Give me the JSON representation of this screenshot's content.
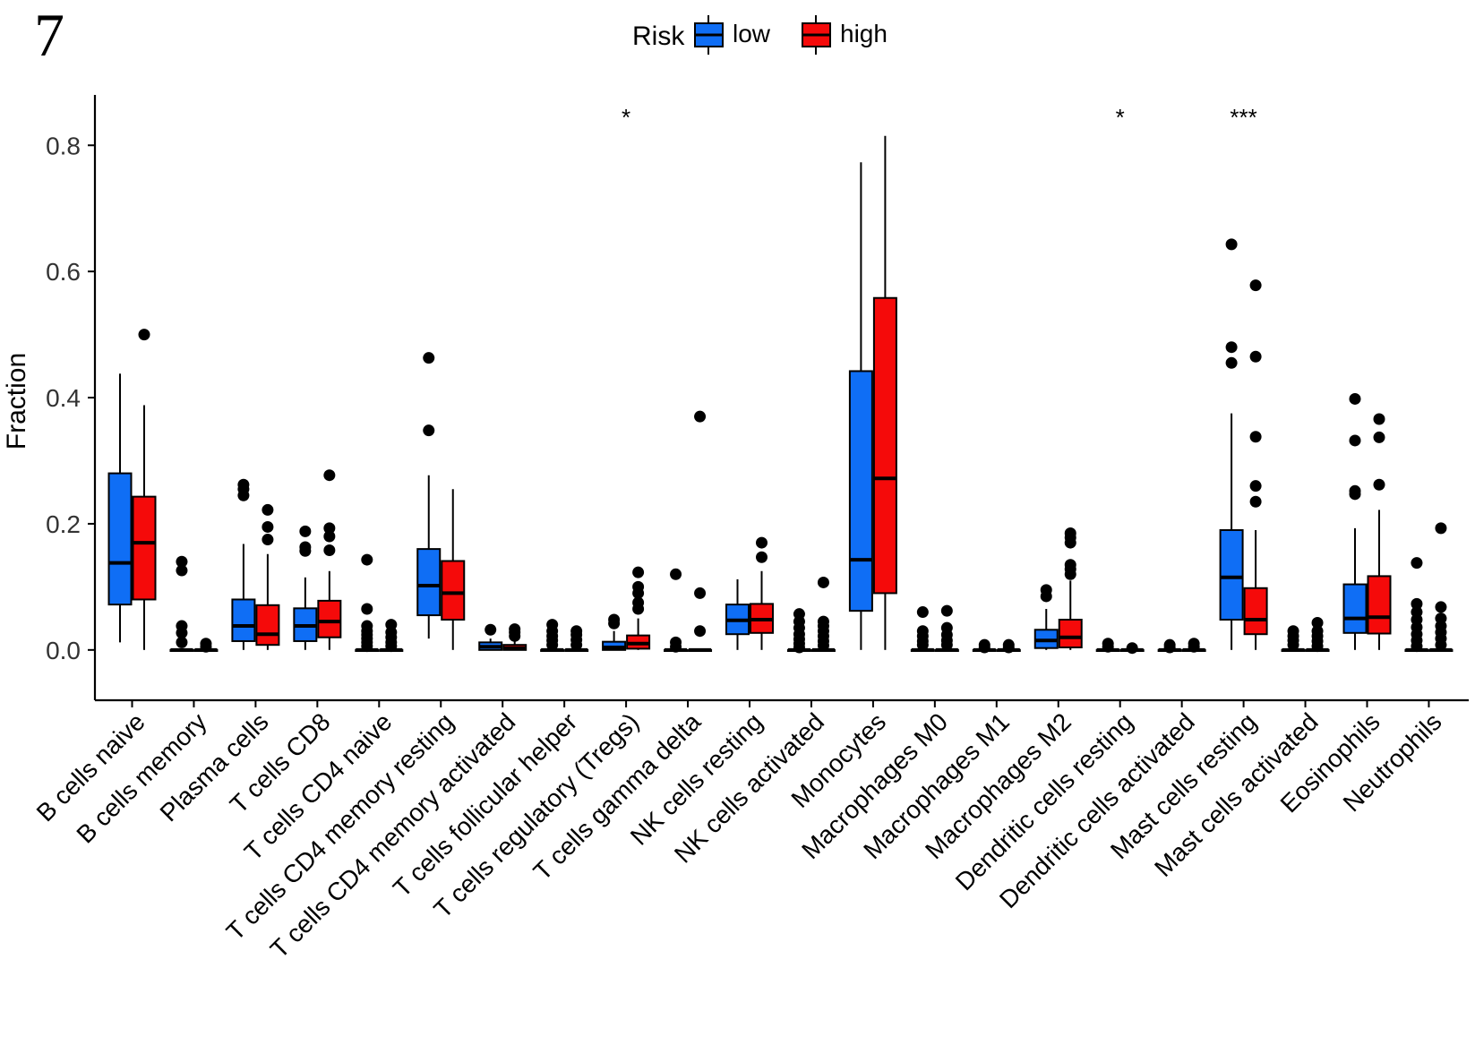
{
  "panel_label": "7",
  "chart_data": {
    "type": "boxplot",
    "title": "",
    "xlabel": "",
    "ylabel": "Fraction",
    "ylim": [
      -0.04,
      0.86
    ],
    "yticks": [
      0.0,
      0.2,
      0.4,
      0.6,
      0.8
    ],
    "ytick_labels": [
      "0.0",
      "0.2",
      "0.4",
      "0.6",
      "0.8"
    ],
    "grid": false,
    "legend": {
      "title": "Risk",
      "position": "top-center",
      "entries": [
        {
          "label": "low",
          "color": "#0F6EF5"
        },
        {
          "label": "high",
          "color": "#F50A0A"
        }
      ]
    },
    "series_order": [
      "low",
      "high"
    ],
    "categories": [
      {
        "label": "B cells naive",
        "sig": "",
        "low": {
          "q1": 0.072,
          "median": 0.138,
          "q3": 0.28,
          "wlo": 0.012,
          "whi": 0.438,
          "out": []
        },
        "high": {
          "q1": 0.08,
          "median": 0.17,
          "q3": 0.243,
          "wlo": 0.0,
          "whi": 0.388,
          "out": [
            0.5
          ]
        }
      },
      {
        "label": "B cells memory",
        "sig": "",
        "low": {
          "q1": 0.0,
          "median": 0.0,
          "q3": 0.0,
          "wlo": 0.0,
          "whi": 0.0,
          "out": [
            0.14,
            0.126,
            0.038,
            0.027,
            0.012
          ]
        },
        "high": {
          "q1": 0.0,
          "median": 0.0,
          "q3": 0.0,
          "wlo": 0.0,
          "whi": 0.0,
          "out": [
            0.01,
            0.005
          ]
        }
      },
      {
        "label": "Plasma cells",
        "sig": "",
        "low": {
          "q1": 0.014,
          "median": 0.038,
          "q3": 0.08,
          "wlo": 0.0,
          "whi": 0.168,
          "out": [
            0.262,
            0.255,
            0.245
          ]
        },
        "high": {
          "q1": 0.008,
          "median": 0.025,
          "q3": 0.071,
          "wlo": 0.0,
          "whi": 0.152,
          "out": [
            0.222,
            0.195,
            0.175
          ]
        }
      },
      {
        "label": "T cells CD8",
        "sig": "",
        "low": {
          "q1": 0.014,
          "median": 0.038,
          "q3": 0.066,
          "wlo": 0.0,
          "whi": 0.115,
          "out": [
            0.188,
            0.163,
            0.157
          ]
        },
        "high": {
          "q1": 0.02,
          "median": 0.045,
          "q3": 0.078,
          "wlo": 0.0,
          "whi": 0.125,
          "out": [
            0.277,
            0.193,
            0.18,
            0.158
          ]
        }
      },
      {
        "label": "T cells CD4 naive",
        "sig": "",
        "low": {
          "q1": 0.0,
          "median": 0.0,
          "q3": 0.0,
          "wlo": 0.0,
          "whi": 0.0,
          "out": [
            0.143,
            0.065,
            0.038,
            0.03,
            0.024,
            0.018,
            0.012,
            0.006
          ]
        },
        "high": {
          "q1": 0.0,
          "median": 0.0,
          "q3": 0.0,
          "wlo": 0.0,
          "whi": 0.0,
          "out": [
            0.04,
            0.028,
            0.02,
            0.012,
            0.006
          ]
        }
      },
      {
        "label": "T cells CD4 memory resting",
        "sig": "",
        "low": {
          "q1": 0.055,
          "median": 0.102,
          "q3": 0.16,
          "wlo": 0.018,
          "whi": 0.277,
          "out": [
            0.463,
            0.348
          ]
        },
        "high": {
          "q1": 0.048,
          "median": 0.09,
          "q3": 0.141,
          "wlo": 0.0,
          "whi": 0.255,
          "out": []
        }
      },
      {
        "label": "T cells CD4 memory activated",
        "sig": "",
        "low": {
          "q1": 0.0,
          "median": 0.005,
          "q3": 0.012,
          "wlo": 0.0,
          "whi": 0.018,
          "out": [
            0.032
          ]
        },
        "high": {
          "q1": 0.0,
          "median": 0.003,
          "q3": 0.008,
          "wlo": 0.0,
          "whi": 0.016,
          "out": [
            0.033,
            0.028,
            0.022
          ]
        }
      },
      {
        "label": "T cells follicular helper",
        "sig": "",
        "low": {
          "q1": 0.0,
          "median": 0.0,
          "q3": 0.0,
          "wlo": 0.0,
          "whi": 0.0,
          "out": [
            0.04,
            0.03,
            0.022,
            0.015,
            0.008
          ]
        },
        "high": {
          "q1": 0.0,
          "median": 0.0,
          "q3": 0.0,
          "wlo": 0.0,
          "whi": 0.0,
          "out": [
            0.03,
            0.024,
            0.016,
            0.008
          ]
        }
      },
      {
        "label": "T cells regulatory (Tregs)",
        "sig": "*",
        "low": {
          "q1": 0.0,
          "median": 0.004,
          "q3": 0.013,
          "wlo": 0.0,
          "whi": 0.03,
          "out": [
            0.048,
            0.042
          ]
        },
        "high": {
          "q1": 0.002,
          "median": 0.01,
          "q3": 0.023,
          "wlo": 0.0,
          "whi": 0.05,
          "out": [
            0.123,
            0.1,
            0.09,
            0.075,
            0.065
          ]
        }
      },
      {
        "label": "T cells gamma delta",
        "sig": "",
        "low": {
          "q1": 0.0,
          "median": 0.0,
          "q3": 0.0,
          "wlo": 0.0,
          "whi": 0.0,
          "out": [
            0.12,
            0.012,
            0.005
          ]
        },
        "high": {
          "q1": 0.0,
          "median": 0.0,
          "q3": 0.0,
          "wlo": 0.0,
          "whi": 0.0,
          "out": [
            0.37,
            0.09,
            0.03
          ]
        }
      },
      {
        "label": "NK cells resting",
        "sig": "",
        "low": {
          "q1": 0.025,
          "median": 0.047,
          "q3": 0.072,
          "wlo": 0.0,
          "whi": 0.112,
          "out": []
        },
        "high": {
          "q1": 0.027,
          "median": 0.048,
          "q3": 0.073,
          "wlo": 0.0,
          "whi": 0.125,
          "out": [
            0.17,
            0.147
          ]
        }
      },
      {
        "label": "NK cells activated",
        "sig": "",
        "low": {
          "q1": 0.0,
          "median": 0.0,
          "q3": 0.0,
          "wlo": 0.0,
          "whi": 0.0,
          "out": [
            0.057,
            0.045,
            0.035,
            0.025,
            0.017,
            0.01,
            0.004
          ]
        },
        "high": {
          "q1": 0.0,
          "median": 0.0,
          "q3": 0.0,
          "wlo": 0.0,
          "whi": 0.0,
          "out": [
            0.107,
            0.045,
            0.038,
            0.03,
            0.022,
            0.014,
            0.007
          ]
        }
      },
      {
        "label": "Monocytes",
        "sig": "",
        "low": {
          "q1": 0.062,
          "median": 0.143,
          "q3": 0.442,
          "wlo": 0.0,
          "whi": 0.773,
          "out": []
        },
        "high": {
          "q1": 0.09,
          "median": 0.272,
          "q3": 0.558,
          "wlo": 0.0,
          "whi": 0.815,
          "out": []
        }
      },
      {
        "label": "Macrophages M0",
        "sig": "",
        "low": {
          "q1": 0.0,
          "median": 0.0,
          "q3": 0.0,
          "wlo": 0.0,
          "whi": 0.0,
          "out": [
            0.06,
            0.03,
            0.022,
            0.014,
            0.008
          ]
        },
        "high": {
          "q1": 0.0,
          "median": 0.0,
          "q3": 0.0,
          "wlo": 0.0,
          "whi": 0.0,
          "out": [
            0.062,
            0.035,
            0.024,
            0.015,
            0.008
          ]
        }
      },
      {
        "label": "Macrophages M1",
        "sig": "",
        "low": {
          "q1": 0.0,
          "median": 0.0,
          "q3": 0.0,
          "wlo": 0.0,
          "whi": 0.0,
          "out": [
            0.008,
            0.004
          ]
        },
        "high": {
          "q1": 0.0,
          "median": 0.0,
          "q3": 0.0,
          "wlo": 0.0,
          "whi": 0.0,
          "out": [
            0.008,
            0.004
          ]
        }
      },
      {
        "label": "Macrophages M2",
        "sig": "",
        "low": {
          "q1": 0.003,
          "median": 0.015,
          "q3": 0.032,
          "wlo": 0.0,
          "whi": 0.065,
          "out": [
            0.095,
            0.085
          ]
        },
        "high": {
          "q1": 0.004,
          "median": 0.02,
          "q3": 0.048,
          "wlo": 0.0,
          "whi": 0.11,
          "out": [
            0.185,
            0.178,
            0.17,
            0.135,
            0.128,
            0.12
          ]
        }
      },
      {
        "label": "Dendritic cells resting",
        "sig": "*",
        "low": {
          "q1": 0.0,
          "median": 0.0,
          "q3": 0.0,
          "wlo": 0.0,
          "whi": 0.0,
          "out": [
            0.01,
            0.005
          ]
        },
        "high": {
          "q1": 0.0,
          "median": 0.0,
          "q3": 0.0,
          "wlo": 0.0,
          "whi": 0.0,
          "out": [
            0.003
          ]
        }
      },
      {
        "label": "Dendritic cells activated",
        "sig": "",
        "low": {
          "q1": 0.0,
          "median": 0.0,
          "q3": 0.0,
          "wlo": 0.0,
          "whi": 0.0,
          "out": [
            0.008,
            0.004
          ]
        },
        "high": {
          "q1": 0.0,
          "median": 0.0,
          "q3": 0.0,
          "wlo": 0.0,
          "whi": 0.0,
          "out": [
            0.01,
            0.005
          ]
        }
      },
      {
        "label": "Mast cells resting",
        "sig": "***",
        "low": {
          "q1": 0.048,
          "median": 0.115,
          "q3": 0.19,
          "wlo": 0.0,
          "whi": 0.375,
          "out": [
            0.643,
            0.48,
            0.455
          ]
        },
        "high": {
          "q1": 0.025,
          "median": 0.048,
          "q3": 0.098,
          "wlo": 0.0,
          "whi": 0.19,
          "out": [
            0.578,
            0.465,
            0.338,
            0.26,
            0.235
          ]
        }
      },
      {
        "label": "Mast cells activated",
        "sig": "",
        "low": {
          "q1": 0.0,
          "median": 0.0,
          "q3": 0.0,
          "wlo": 0.0,
          "whi": 0.0,
          "out": [
            0.03,
            0.022,
            0.015,
            0.008
          ]
        },
        "high": {
          "q1": 0.0,
          "median": 0.0,
          "q3": 0.0,
          "wlo": 0.0,
          "whi": 0.0,
          "out": [
            0.043,
            0.03,
            0.022,
            0.014,
            0.006
          ]
        }
      },
      {
        "label": "Eosinophils",
        "sig": "",
        "low": {
          "q1": 0.027,
          "median": 0.05,
          "q3": 0.104,
          "wlo": 0.0,
          "whi": 0.193,
          "out": [
            0.398,
            0.332,
            0.252,
            0.247
          ]
        },
        "high": {
          "q1": 0.026,
          "median": 0.052,
          "q3": 0.117,
          "wlo": 0.0,
          "whi": 0.222,
          "out": [
            0.366,
            0.337,
            0.262
          ]
        }
      },
      {
        "label": "Neutrophils",
        "sig": "",
        "low": {
          "q1": 0.0,
          "median": 0.0,
          "q3": 0.0,
          "wlo": 0.0,
          "whi": 0.0,
          "out": [
            0.138,
            0.073,
            0.06,
            0.048,
            0.036,
            0.025,
            0.015,
            0.006
          ]
        },
        "high": {
          "q1": 0.0,
          "median": 0.0,
          "q3": 0.0,
          "wlo": 0.0,
          "whi": 0.0,
          "out": [
            0.193,
            0.068,
            0.05,
            0.038,
            0.028,
            0.018,
            0.008
          ]
        }
      }
    ]
  }
}
